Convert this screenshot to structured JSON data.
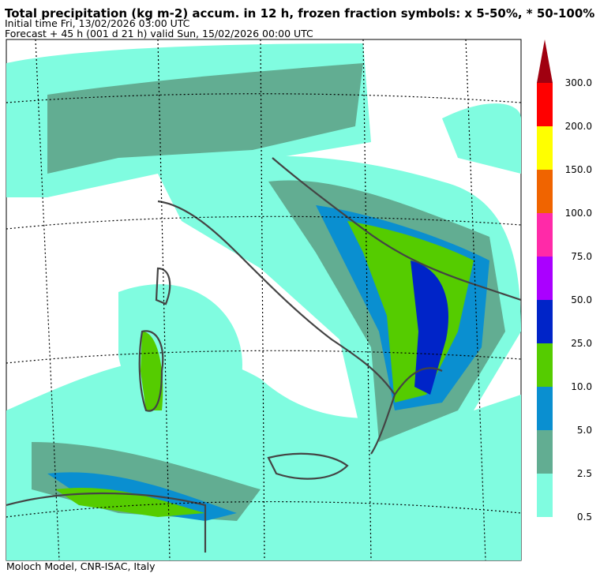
{
  "header": {
    "title": "Total precipitation (kg m-2) accum. in 12 h, frozen fraction symbols: x 5-50%, * 50-100%",
    "initial_time": "Initial time  Fri, 13/02/2026  03:00 UTC",
    "forecast": "Forecast  +  45 h  (001 d 21 h)  valid Sun, 15/02/2026 00:00 UTC"
  },
  "colorbar": {
    "levels": [
      {
        "label": "0.5",
        "color": "#80fce0"
      },
      {
        "label": "2.5",
        "color": "#62ad92"
      },
      {
        "label": "5.0",
        "color": "#0a8fd0"
      },
      {
        "label": "10.0",
        "color": "#55cc00"
      },
      {
        "label": "25.0",
        "color": "#0024c8"
      },
      {
        "label": "50.0",
        "color": "#aa00ff"
      },
      {
        "label": "75.0",
        "color": "#ff2aa8"
      },
      {
        "label": "100.0",
        "color": "#f06400"
      },
      {
        "label": "150.0",
        "color": "#ffff00"
      },
      {
        "label": "200.0",
        "color": "#ff0000"
      },
      {
        "label": "300.0",
        "color": "#a00010"
      }
    ]
  },
  "footer": "Moloch Model, CNR-ISAC, Italy"
}
